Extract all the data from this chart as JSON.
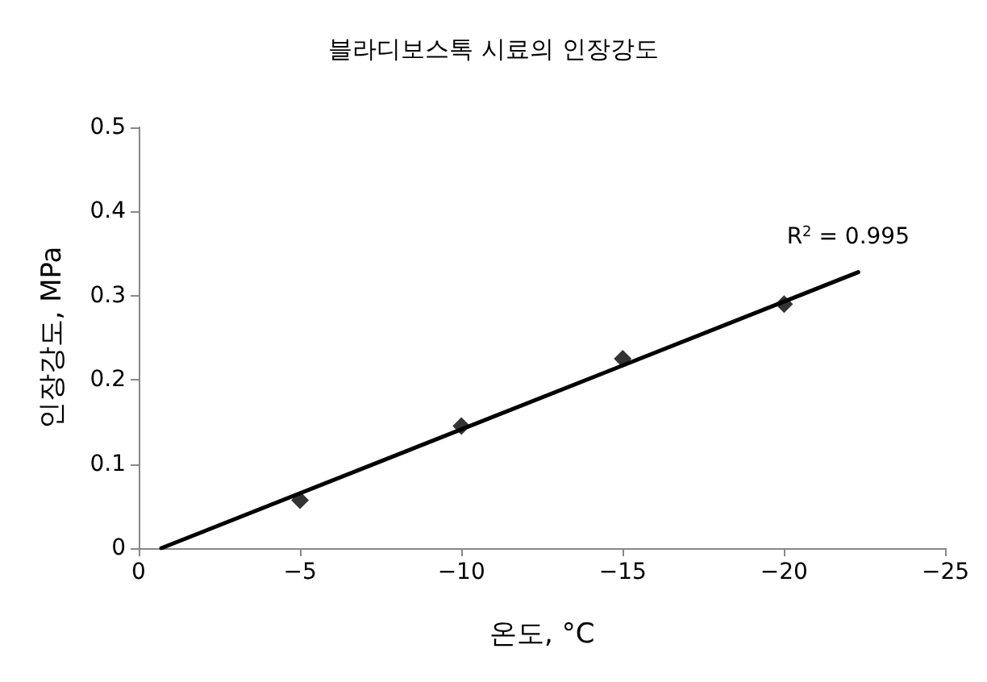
{
  "chart_data": {
    "type": "scatter",
    "title": "블라디보스톡 시료의 인장강도",
    "xlabel": "온도, °C",
    "ylabel": "인장강도, MPa",
    "x": [
      -5,
      -10,
      -15,
      -20
    ],
    "series": [
      {
        "color": "#000000",
        "marker": "diamond",
        "values": [
          0.057,
          0.145,
          0.225,
          0.29
        ]
      },
      {
        "type": "line",
        "color": "#000000",
        "marker": "none",
        "line_style": "solid",
        "x": [
          -0.7,
          -22.3
        ],
        "values": [
          0,
          0.328
        ]
      }
    ],
    "annotations": [
      "R$^{2}$ = 0.995"
    ],
    "xlim": [
      0,
      -25
    ],
    "xticks": [
      0,
      {
        "value": -5,
        "label": "−5"
      },
      {
        "value": -10,
        "label": "−10"
      },
      {
        "value": -15,
        "label": "−15"
      },
      {
        "value": -20,
        "label": "−20"
      },
      {
        "value": -25,
        "label": "−25"
      }
    ],
    "ylim": [
      0,
      0.5
    ],
    "yticks": [
      0,
      0.1,
      0.2,
      0.3,
      0.4,
      0.5
    ],
    "grid": false
  }
}
